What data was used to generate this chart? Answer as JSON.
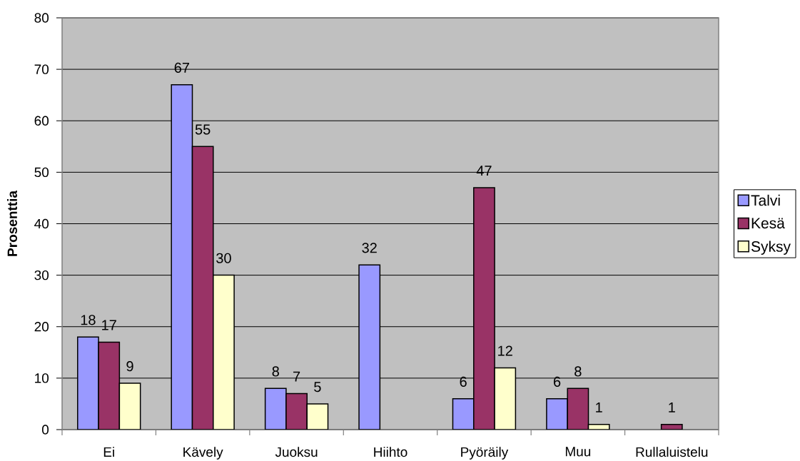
{
  "chart_data": {
    "type": "bar",
    "ylabel": "Prosenttia",
    "categories": [
      "Ei",
      "Kävely",
      "Juoksu",
      "Hiihto",
      "Pyöräily",
      "Muu",
      "Rullaluistelu"
    ],
    "series": [
      {
        "name": "Talvi",
        "color": "#9999ff",
        "values": [
          18,
          67,
          8,
          32,
          6,
          6,
          null
        ]
      },
      {
        "name": "Kesä",
        "color": "#993366",
        "values": [
          17,
          55,
          7,
          null,
          47,
          8,
          1
        ]
      },
      {
        "name": "Syksy",
        "color": "#ffffcc",
        "values": [
          9,
          30,
          5,
          null,
          12,
          1,
          null
        ]
      }
    ],
    "ylim": [
      0,
      80
    ],
    "yticks": [
      0,
      10,
      20,
      30,
      40,
      50,
      60,
      70,
      80
    ],
    "grid": "y",
    "legend": "right",
    "data_labels": true
  }
}
